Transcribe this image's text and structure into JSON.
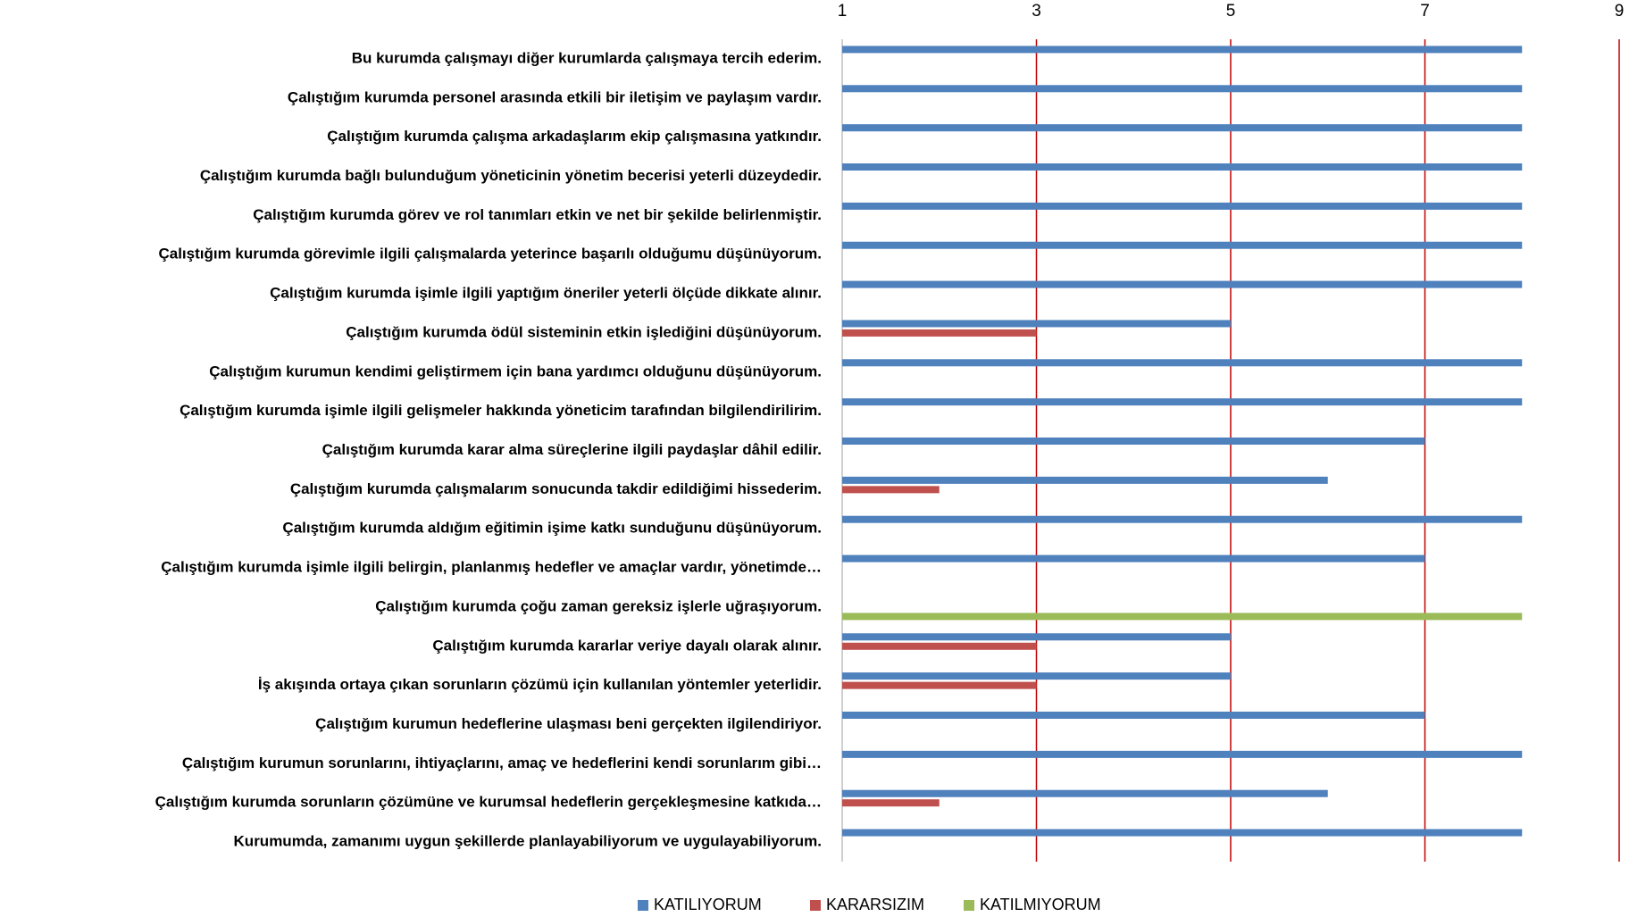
{
  "chart_data": {
    "type": "bar",
    "orientation": "horizontal",
    "categories": [
      "Bu kurumda çalışmayı diğer kurumlarda çalışmaya tercih ederim.",
      "Çalıştığım kurumda personel arasında etkili bir iletişim ve paylaşım vardır.",
      "Çalıştığım kurumda çalışma arkadaşlarım ekip çalışmasına yatkındır.",
      "Çalıştığım kurumda bağlı bulunduğum yöneticinin yönetim becerisi yeterli düzeydedir.",
      "Çalıştığım kurumda görev ve rol tanımları etkin ve net bir şekilde belirlenmiştir.",
      "Çalıştığım kurumda görevimle ilgili çalışmalarda yeterince başarılı olduğumu düşünüyorum.",
      "Çalıştığım kurumda işimle ilgili yaptığım öneriler yeterli ölçüde dikkate alınır.",
      "Çalıştığım kurumda ödül sisteminin etkin işlediğini düşünüyorum.",
      "Çalıştığım kurumun kendimi geliştirmem için bana yardımcı olduğunu düşünüyorum.",
      "Çalıştığım kurumda işimle ilgili gelişmeler hakkında yöneticim tarafından bilgilendirilirim.",
      "Çalıştığım kurumda karar alma süreçlerine ilgili paydaşlar dâhil edilir.",
      "Çalıştığım kurumda çalışmalarım sonucunda takdir edildiğimi hissederim.",
      "Çalıştığım kurumda aldığım eğitimin işime katkı sunduğunu düşünüyorum.",
      "Çalıştığım kurumda işimle ilgili belirgin, planlanmış hedefler ve amaçlar vardır, yönetimde…",
      "Çalıştığım kurumda çoğu zaman gereksiz işlerle uğraşıyorum.",
      "Çalıştığım kurumda kararlar veriye dayalı olarak alınır.",
      "İş akışında ortaya çıkan sorunların çözümü için kullanılan yöntemler yeterlidir.",
      "Çalıştığım kurumun hedeflerine ulaşması beni gerçekten ilgilendiriyor.",
      "Çalıştığım kurumun sorunlarını, ihtiyaçlarını, amaç ve hedeflerini kendi sorunlarım gibi…",
      "Çalıştığım kurumda sorunların çözümüne ve kurumsal hedeflerin gerçekleşmesine katkıda…",
      "Kurumumda, zamanımı uygun şekillerde planlayabiliyorum ve uygulayabiliyorum."
    ],
    "series": [
      {
        "name": "KATILIYORUM",
        "color": "#4f81bd",
        "values": [
          8,
          8,
          8,
          8,
          8,
          8,
          8,
          5,
          8,
          8,
          7,
          6,
          8,
          7,
          null,
          5,
          5,
          7,
          8,
          6,
          8
        ]
      },
      {
        "name": "KARARSIZIM",
        "color": "#c0504d",
        "values": [
          null,
          null,
          null,
          null,
          null,
          null,
          null,
          3,
          null,
          null,
          null,
          2,
          null,
          null,
          null,
          3,
          3,
          null,
          null,
          2,
          null
        ]
      },
      {
        "name": "KATILMIYORUM",
        "color": "#9bbb59",
        "values": [
          null,
          null,
          null,
          null,
          null,
          null,
          null,
          null,
          null,
          null,
          null,
          null,
          null,
          null,
          8,
          null,
          null,
          null,
          null,
          null,
          null
        ]
      }
    ],
    "xlim": [
      1,
      9
    ],
    "xticks": [
      1,
      3,
      5,
      7,
      9
    ],
    "grid": true,
    "grid_color": "#c00000",
    "legend": "bottom"
  }
}
